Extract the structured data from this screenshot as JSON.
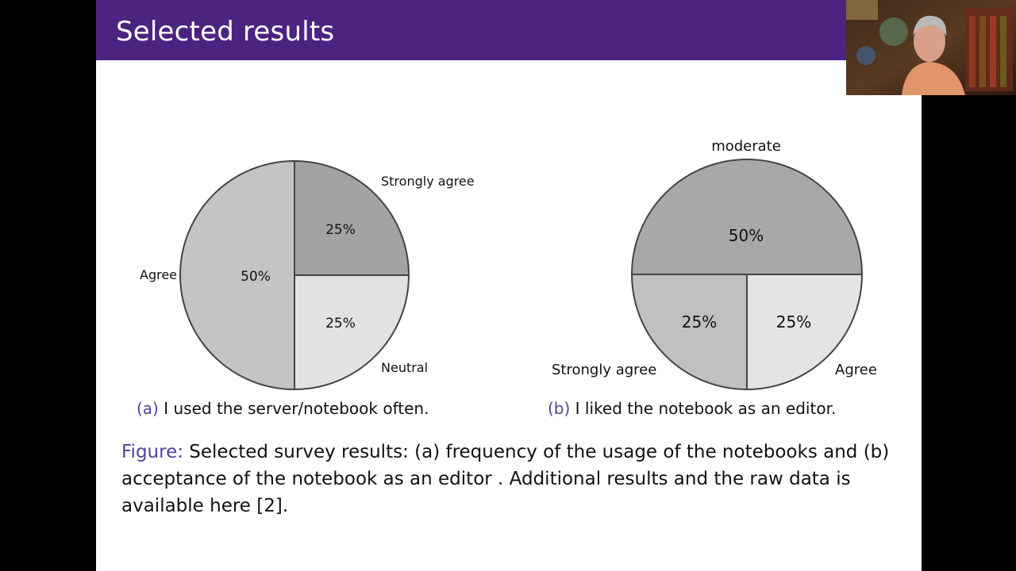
{
  "slide": {
    "title": "Selected results"
  },
  "chart_data": [
    {
      "type": "pie",
      "caption_tag": "(a)",
      "caption_text": "I used the server/notebook often.",
      "slices": [
        {
          "label": "Strongly agree",
          "value": 25,
          "value_label": "25%",
          "color": "#a3a3a3"
        },
        {
          "label": "Neutral",
          "value": 25,
          "value_label": "25%",
          "color": "#e2e2e2"
        },
        {
          "label": "Agree",
          "value": 50,
          "value_label": "50%",
          "color": "#c4c4c4"
        }
      ]
    },
    {
      "type": "pie",
      "caption_tag": "(b)",
      "caption_text": "I liked the notebook as an editor.",
      "slices": [
        {
          "label": "moderate",
          "value": 50,
          "value_label": "50%",
          "color": "#a8a8a8"
        },
        {
          "label": "Agree",
          "value": 25,
          "value_label": "25%",
          "color": "#e4e4e4"
        },
        {
          "label": "Strongly agree",
          "value": 25,
          "value_label": "25%",
          "color": "#c0c0c0"
        }
      ]
    }
  ],
  "figure_caption": {
    "label": "Figure:",
    "text": "Selected survey results:   (a) frequency of the usage of the notebooks and (b) acceptance of the notebook as an editor .  Additional results and the raw data is available here [2]."
  }
}
